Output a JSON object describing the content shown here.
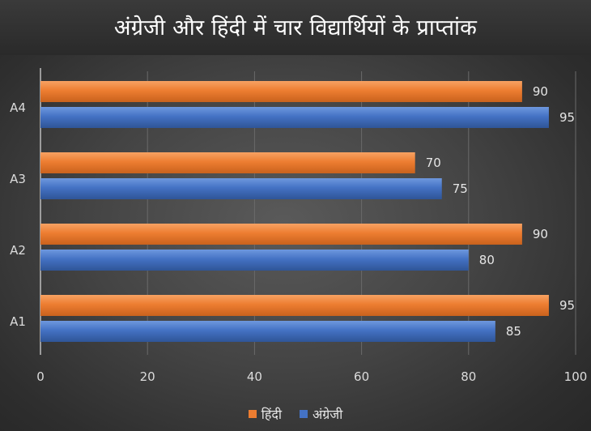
{
  "chart_data": {
    "type": "bar",
    "orientation": "horizontal",
    "title": "अंग्रेजी और हिंदी में चार विद्यार्थियों के प्राप्तांक",
    "categories": [
      "A1",
      "A2",
      "A3",
      "A4"
    ],
    "series": [
      {
        "name": "हिंदी",
        "values": [
          95,
          90,
          70,
          90
        ],
        "color": "#ED7D31"
      },
      {
        "name": "अंग्रेजी",
        "values": [
          85,
          80,
          75,
          95
        ],
        "color": "#4472C4"
      }
    ],
    "xlim": [
      0,
      100
    ],
    "x_ticks": [
      "0",
      "20",
      "40",
      "60",
      "80",
      "100"
    ],
    "grid": true,
    "data_labels": true,
    "legend_position": "bottom"
  }
}
